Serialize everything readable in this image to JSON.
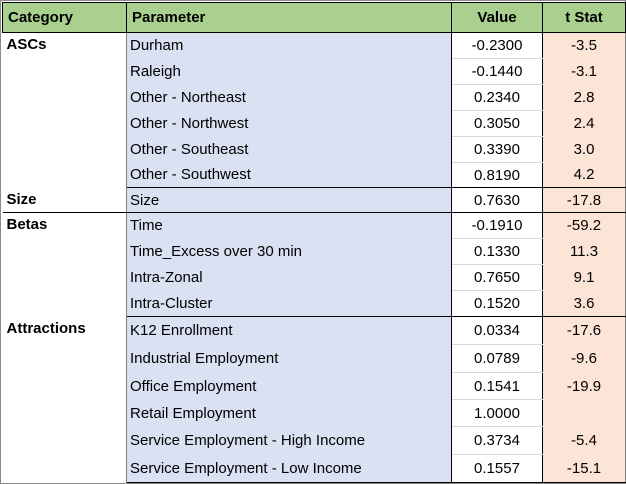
{
  "headers": {
    "category": "Category",
    "parameter": "Parameter",
    "value": "Value",
    "tstat": "t Stat"
  },
  "groups": [
    {
      "category": "ASCs",
      "rows": [
        {
          "parameter": "Durham",
          "value": "-0.2300",
          "tstat": "-3.5"
        },
        {
          "parameter": "Raleigh",
          "value": "-0.1440",
          "tstat": "-3.1"
        },
        {
          "parameter": "Other - Northeast",
          "value": "0.2340",
          "tstat": "2.8"
        },
        {
          "parameter": "Other - Northwest",
          "value": "0.3050",
          "tstat": "2.4"
        },
        {
          "parameter": "Other - Southeast",
          "value": "0.3390",
          "tstat": "3.0"
        },
        {
          "parameter": "Other - Southwest",
          "value": "0.8190",
          "tstat": "4.2"
        }
      ]
    },
    {
      "category": "Size",
      "rows": [
        {
          "parameter": "Size",
          "value": "0.7630",
          "tstat": "-17.8"
        }
      ]
    },
    {
      "category": "Betas",
      "rows": [
        {
          "parameter": "Time",
          "value": "-0.1910",
          "tstat": "-59.2"
        },
        {
          "parameter": "Time_Excess over 30 min",
          "value": "0.1330",
          "tstat": "11.3"
        },
        {
          "parameter": "Intra-Zonal",
          "value": "0.7650",
          "tstat": "9.1"
        },
        {
          "parameter": "Intra-Cluster",
          "value": "0.1520",
          "tstat": "3.6"
        }
      ]
    },
    {
      "category": "Attractions",
      "rows": [
        {
          "parameter": "K12 Enrollment",
          "value": "0.0334",
          "tstat": "-17.6"
        },
        {
          "parameter": "Industrial Employment",
          "value": "0.0789",
          "tstat": "-9.6"
        },
        {
          "parameter": "Office Employment",
          "value": "0.1541",
          "tstat": "-19.9"
        },
        {
          "parameter": "Retail Employment",
          "value": "1.0000",
          "tstat": ""
        },
        {
          "parameter": "Service  Employment - High Income",
          "value": "0.3734",
          "tstat": "-5.4"
        },
        {
          "parameter": "Service  Employment - Low Income",
          "value": "0.1557",
          "tstat": "-15.1"
        }
      ]
    }
  ]
}
